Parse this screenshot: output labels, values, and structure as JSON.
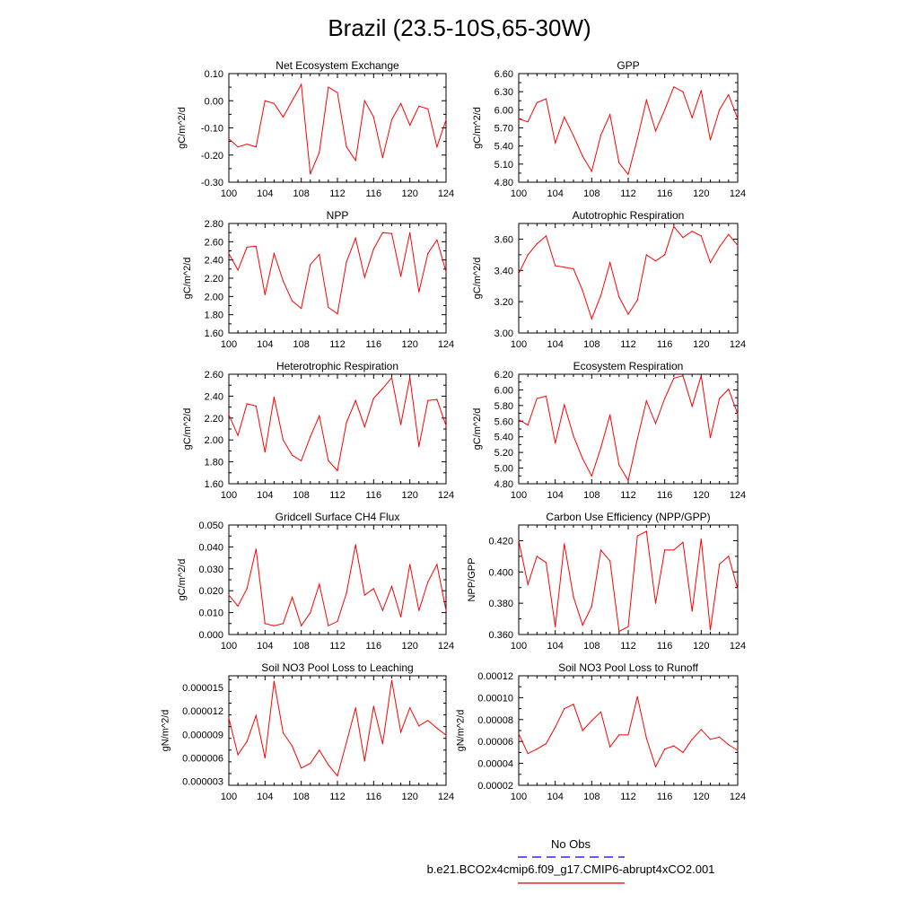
{
  "title": "Brazil (23.5-10S,65-30W)",
  "legend": {
    "entries": [
      {
        "label": "No Obs",
        "color": "#0000cc",
        "dash": true
      },
      {
        "label": "b.e21.BCO2x4cmip6.f09_g17.CMIP6-abrupt4xCO2.001",
        "color": "#e00000",
        "dash": false
      }
    ]
  },
  "colors": {
    "series": "#ff0000"
  },
  "chart_data": [
    {
      "type": "line",
      "title": "Net Ecosystem Exchange",
      "ylabel": "gC/m^2/d",
      "xlim": [
        100,
        124
      ],
      "ylim": [
        -0.3,
        0.1
      ],
      "xticks": [
        "100",
        "104",
        "108",
        "112",
        "116",
        "120",
        "124"
      ],
      "yticks": [
        "-0.30",
        "-0.20",
        "-0.10",
        "0.00",
        "0.10"
      ],
      "yticks_values": [
        -0.3,
        -0.2,
        -0.1,
        0.0,
        0.1
      ],
      "x": [
        100,
        101,
        102,
        103,
        104,
        105,
        106,
        107,
        108,
        109,
        110,
        111,
        112,
        113,
        114,
        115,
        116,
        117,
        118,
        119,
        120,
        121,
        122,
        123,
        124
      ],
      "values": [
        -0.14,
        -0.17,
        -0.16,
        -0.17,
        0.0,
        -0.01,
        -0.06,
        0.0,
        0.06,
        -0.27,
        -0.19,
        0.05,
        0.03,
        -0.17,
        -0.22,
        0.0,
        -0.06,
        -0.21,
        -0.07,
        -0.01,
        -0.09,
        -0.02,
        -0.03,
        -0.17,
        -0.07
      ]
    },
    {
      "type": "line",
      "title": "GPP",
      "ylabel": "gC/m^2/d",
      "xlim": [
        100,
        124
      ],
      "ylim": [
        4.8,
        6.6
      ],
      "xticks": [
        "100",
        "104",
        "108",
        "112",
        "116",
        "120",
        "124"
      ],
      "yticks": [
        "4.80",
        "5.10",
        "5.40",
        "5.70",
        "6.00",
        "6.30",
        "6.60"
      ],
      "yticks_values": [
        4.8,
        5.1,
        5.4,
        5.7,
        6.0,
        6.3,
        6.6
      ],
      "x": [
        100,
        101,
        102,
        103,
        104,
        105,
        106,
        107,
        108,
        109,
        110,
        111,
        112,
        113,
        114,
        115,
        116,
        117,
        118,
        119,
        120,
        121,
        122,
        123,
        124
      ],
      "values": [
        5.85,
        5.8,
        6.12,
        6.18,
        5.45,
        5.88,
        5.57,
        5.23,
        4.98,
        5.58,
        5.92,
        5.12,
        4.93,
        5.52,
        6.16,
        5.65,
        6.0,
        6.38,
        6.3,
        5.87,
        6.32,
        5.5,
        6.0,
        6.25,
        5.85
      ]
    },
    {
      "type": "line",
      "title": "NPP",
      "ylabel": "gC/m^2/d",
      "xlim": [
        100,
        124
      ],
      "ylim": [
        1.6,
        2.8
      ],
      "xticks": [
        "100",
        "104",
        "108",
        "112",
        "116",
        "120",
        "124"
      ],
      "yticks": [
        "1.60",
        "1.80",
        "2.00",
        "2.20",
        "2.40",
        "2.60",
        "2.80"
      ],
      "yticks_values": [
        1.6,
        1.8,
        2.0,
        2.2,
        2.4,
        2.6,
        2.8
      ],
      "x": [
        100,
        101,
        102,
        103,
        104,
        105,
        106,
        107,
        108,
        109,
        110,
        111,
        112,
        113,
        114,
        115,
        116,
        117,
        118,
        119,
        120,
        121,
        122,
        123,
        124
      ],
      "values": [
        2.47,
        2.29,
        2.54,
        2.55,
        2.02,
        2.47,
        2.17,
        1.95,
        1.87,
        2.35,
        2.46,
        1.88,
        1.81,
        2.38,
        2.64,
        2.21,
        2.52,
        2.7,
        2.69,
        2.22,
        2.7,
        2.05,
        2.47,
        2.62,
        2.27
      ]
    },
    {
      "type": "line",
      "title": "Autotrophic Respiration",
      "ylabel": "gC/m^2/d",
      "xlim": [
        100,
        124
      ],
      "ylim": [
        3.0,
        3.7
      ],
      "xticks": [
        "100",
        "104",
        "108",
        "112",
        "116",
        "120",
        "124"
      ],
      "yticks": [
        "3.00",
        "3.20",
        "3.40",
        "3.60"
      ],
      "yticks_values": [
        3.0,
        3.2,
        3.4,
        3.6
      ],
      "x": [
        100,
        101,
        102,
        103,
        104,
        105,
        106,
        107,
        108,
        109,
        110,
        111,
        112,
        113,
        114,
        115,
        116,
        117,
        118,
        119,
        120,
        121,
        122,
        123,
        124
      ],
      "values": [
        3.38,
        3.5,
        3.57,
        3.62,
        3.43,
        3.42,
        3.41,
        3.27,
        3.09,
        3.24,
        3.45,
        3.23,
        3.12,
        3.21,
        3.5,
        3.46,
        3.5,
        3.68,
        3.61,
        3.65,
        3.62,
        3.45,
        3.55,
        3.63,
        3.56
      ]
    },
    {
      "type": "line",
      "title": "Heterotrophic Respiration",
      "ylabel": "gC/m^2/d",
      "xlim": [
        100,
        124
      ],
      "ylim": [
        1.6,
        2.6
      ],
      "xticks": [
        "100",
        "104",
        "108",
        "112",
        "116",
        "120",
        "124"
      ],
      "yticks": [
        "1.60",
        "1.80",
        "2.00",
        "2.20",
        "2.40",
        "2.60"
      ],
      "yticks_values": [
        1.6,
        1.8,
        2.0,
        2.2,
        2.4,
        2.6
      ],
      "x": [
        100,
        101,
        102,
        103,
        104,
        105,
        106,
        107,
        108,
        109,
        110,
        111,
        112,
        113,
        114,
        115,
        116,
        117,
        118,
        119,
        120,
        121,
        122,
        123,
        124
      ],
      "values": [
        2.23,
        2.04,
        2.33,
        2.31,
        1.89,
        2.39,
        2.0,
        1.86,
        1.81,
        2.03,
        2.22,
        1.81,
        1.72,
        2.16,
        2.36,
        2.12,
        2.38,
        2.47,
        2.57,
        2.14,
        2.57,
        1.94,
        2.36,
        2.37,
        2.13
      ]
    },
    {
      "type": "line",
      "title": "Ecosystem Respiration",
      "ylabel": "gC/m^2/d",
      "xlim": [
        100,
        124
      ],
      "ylim": [
        4.8,
        6.2
      ],
      "xticks": [
        "100",
        "104",
        "108",
        "112",
        "116",
        "120",
        "124"
      ],
      "yticks": [
        "4.80",
        "5.00",
        "5.20",
        "5.40",
        "5.60",
        "5.80",
        "6.00",
        "6.20"
      ],
      "yticks_values": [
        4.8,
        5.0,
        5.2,
        5.4,
        5.6,
        5.8,
        6.0,
        6.2
      ],
      "x": [
        100,
        101,
        102,
        103,
        104,
        105,
        106,
        107,
        108,
        109,
        110,
        111,
        112,
        113,
        114,
        115,
        116,
        117,
        118,
        119,
        120,
        121,
        122,
        123,
        124
      ],
      "values": [
        5.62,
        5.55,
        5.89,
        5.92,
        5.32,
        5.81,
        5.41,
        5.12,
        4.9,
        5.26,
        5.68,
        5.04,
        4.84,
        5.37,
        5.86,
        5.57,
        5.89,
        6.15,
        6.18,
        5.79,
        6.18,
        5.39,
        5.89,
        6.01,
        5.69
      ]
    },
    {
      "type": "line",
      "title": "Gridcell Surface CH4 Flux",
      "ylabel": "gC/m^2/d",
      "xlim": [
        100,
        124
      ],
      "ylim": [
        0.0,
        0.05
      ],
      "xticks": [
        "100",
        "104",
        "108",
        "112",
        "116",
        "120",
        "124"
      ],
      "yticks": [
        "0.000",
        "0.010",
        "0.020",
        "0.030",
        "0.040",
        "0.050"
      ],
      "yticks_values": [
        0.0,
        0.01,
        0.02,
        0.03,
        0.04,
        0.05
      ],
      "x": [
        100,
        101,
        102,
        103,
        104,
        105,
        106,
        107,
        108,
        109,
        110,
        111,
        112,
        113,
        114,
        115,
        116,
        117,
        118,
        119,
        120,
        121,
        122,
        123,
        124
      ],
      "values": [
        0.018,
        0.013,
        0.021,
        0.039,
        0.005,
        0.004,
        0.005,
        0.017,
        0.004,
        0.01,
        0.023,
        0.004,
        0.006,
        0.019,
        0.041,
        0.018,
        0.021,
        0.011,
        0.022,
        0.008,
        0.032,
        0.011,
        0.024,
        0.032,
        0.011
      ]
    },
    {
      "type": "line",
      "title": "Carbon Use Efficiency (NPP/GPP)",
      "ylabel": "NPP/GPP",
      "xlim": [
        100,
        124
      ],
      "ylim": [
        0.36,
        0.43
      ],
      "xticks": [
        "100",
        "104",
        "108",
        "112",
        "116",
        "120",
        "124"
      ],
      "yticks": [
        "0.360",
        "0.380",
        "0.400",
        "0.420"
      ],
      "yticks_values": [
        0.36,
        0.38,
        0.4,
        0.42
      ],
      "x": [
        100,
        101,
        102,
        103,
        104,
        105,
        106,
        107,
        108,
        109,
        110,
        111,
        112,
        113,
        114,
        115,
        116,
        117,
        118,
        119,
        120,
        121,
        122,
        123,
        124
      ],
      "values": [
        0.42,
        0.392,
        0.41,
        0.406,
        0.365,
        0.418,
        0.384,
        0.366,
        0.378,
        0.414,
        0.407,
        0.362,
        0.365,
        0.423,
        0.426,
        0.38,
        0.414,
        0.414,
        0.419,
        0.375,
        0.421,
        0.363,
        0.405,
        0.41,
        0.389
      ]
    },
    {
      "type": "line",
      "title": "Soil NO3 Pool Loss to Leaching",
      "ylabel": "gN/m^2/d",
      "xlim": [
        100,
        124
      ],
      "ylim": [
        2.5e-06,
        1.65e-05
      ],
      "xticks": [
        "100",
        "104",
        "108",
        "112",
        "116",
        "120",
        "124"
      ],
      "yticks": [
        "0.000003",
        "0.000006",
        "0.000009",
        "0.000012",
        "0.000015"
      ],
      "yticks_values": [
        3e-06,
        6e-06,
        9e-06,
        1.2e-05,
        1.5e-05
      ],
      "x": [
        100,
        101,
        102,
        103,
        104,
        105,
        106,
        107,
        108,
        109,
        110,
        111,
        112,
        113,
        114,
        115,
        116,
        117,
        118,
        119,
        120,
        121,
        122,
        123,
        124
      ],
      "values": [
        1.11e-05,
        6.4e-06,
        8.1e-06,
        1.14e-05,
        6e-06,
        1.58e-05,
        9.2e-06,
        7.5e-06,
        4.7e-06,
        5.3e-06,
        7e-06,
        5.1e-06,
        3.7e-06,
        8e-06,
        1.24e-05,
        5.6e-06,
        1.26e-05,
        7.8e-06,
        1.59e-05,
        9.3e-06,
        1.24e-05,
        1.01e-05,
        1.08e-05,
        9.8e-06,
        8.9e-06
      ]
    },
    {
      "type": "line",
      "title": "Soil NO3 Pool Loss to Runoff",
      "ylabel": "gN/m^2/d",
      "xlim": [
        100,
        124
      ],
      "ylim": [
        2e-05,
        0.00012
      ],
      "xticks": [
        "100",
        "104",
        "108",
        "112",
        "116",
        "120",
        "124"
      ],
      "yticks": [
        "0.00002",
        "0.00004",
        "0.00006",
        "0.00008",
        "0.00010",
        "0.00012"
      ],
      "yticks_values": [
        2e-05,
        4e-05,
        6e-05,
        8e-05,
        0.0001,
        0.00012
      ],
      "x": [
        100,
        101,
        102,
        103,
        104,
        105,
        106,
        107,
        108,
        109,
        110,
        111,
        112,
        113,
        114,
        115,
        116,
        117,
        118,
        119,
        120,
        121,
        122,
        123,
        124
      ],
      "values": [
        6.7e-05,
        4.9e-05,
        5.3e-05,
        5.8e-05,
        7.3e-05,
        9e-05,
        9.4e-05,
        7e-05,
        7.9e-05,
        8.7e-05,
        5.5e-05,
        6.6e-05,
        6.6e-05,
        0.000101,
        6.3e-05,
        3.7e-05,
        5.3e-05,
        5.6e-05,
        5e-05,
        6.2e-05,
        7.1e-05,
        6.2e-05,
        6.4e-05,
        5.7e-05,
        5.2e-05
      ]
    }
  ]
}
